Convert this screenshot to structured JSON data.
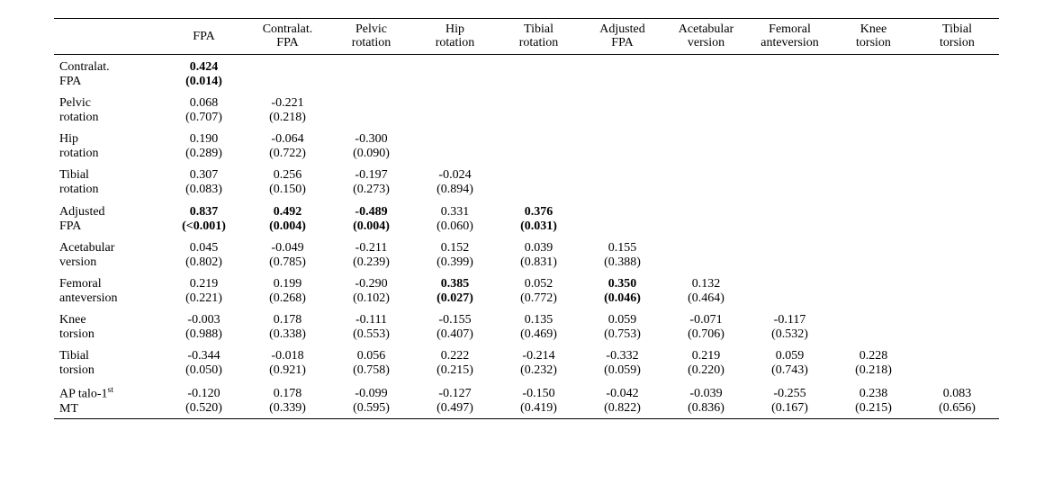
{
  "columns": [
    "FPA",
    "Contralat.\nFPA",
    "Pelvic\nrotation",
    "Hip\nrotation",
    "Tibial\nrotation",
    "Adjusted\nFPA",
    "Acetabular\nversion",
    "Femoral\nanteversion",
    "Knee\ntorsion",
    "Tibial\ntorsion"
  ],
  "rows": [
    {
      "label": "Contralat.\nFPA",
      "cells": [
        {
          "r": "0.424",
          "p": "(0.014)",
          "bold": true
        }
      ]
    },
    {
      "label": "Pelvic\nrotation",
      "cells": [
        {
          "r": "0.068",
          "p": "(0.707)"
        },
        {
          "r": "-0.221",
          "p": "(0.218)"
        }
      ]
    },
    {
      "label": "Hip\nrotation",
      "cells": [
        {
          "r": "0.190",
          "p": "(0.289)"
        },
        {
          "r": "-0.064",
          "p": "(0.722)"
        },
        {
          "r": "-0.300",
          "p": "(0.090)"
        }
      ]
    },
    {
      "label": "Tibial\nrotation",
      "cells": [
        {
          "r": "0.307",
          "p": "(0.083)"
        },
        {
          "r": "0.256",
          "p": "(0.150)"
        },
        {
          "r": "-0.197",
          "p": "(0.273)"
        },
        {
          "r": "-0.024",
          "p": "(0.894)"
        }
      ]
    },
    {
      "label": "Adjusted\nFPA",
      "cells": [
        {
          "r": "0.837",
          "p": "(<0.001)",
          "bold": true
        },
        {
          "r": "0.492",
          "p": "(0.004)",
          "bold": true
        },
        {
          "r": "-0.489",
          "p": "(0.004)",
          "bold": true
        },
        {
          "r": "0.331",
          "p": "(0.060)"
        },
        {
          "r": "0.376",
          "p": "(0.031)",
          "bold": true
        }
      ]
    },
    {
      "label": "Acetabular\nversion",
      "cells": [
        {
          "r": "0.045",
          "p": "(0.802)"
        },
        {
          "r": "-0.049",
          "p": "(0.785)"
        },
        {
          "r": "-0.211",
          "p": "(0.239)"
        },
        {
          "r": "0.152",
          "p": "(0.399)"
        },
        {
          "r": "0.039",
          "p": "(0.831)"
        },
        {
          "r": "0.155",
          "p": "(0.388)"
        }
      ]
    },
    {
      "label": "Femoral\nanteversion",
      "cells": [
        {
          "r": "0.219",
          "p": "(0.221)"
        },
        {
          "r": "0.199",
          "p": "(0.268)"
        },
        {
          "r": "-0.290",
          "p": "(0.102)"
        },
        {
          "r": "0.385",
          "p": "(0.027)",
          "bold": true
        },
        {
          "r": "0.052",
          "p": "(0.772)"
        },
        {
          "r": "0.350",
          "p": "(0.046)",
          "bold": true
        },
        {
          "r": "0.132",
          "p": "(0.464)"
        }
      ]
    },
    {
      "label": "Knee\ntorsion",
      "cells": [
        {
          "r": "-0.003",
          "p": "(0.988)"
        },
        {
          "r": "0.178",
          "p": "(0.338)"
        },
        {
          "r": "-0.111",
          "p": "(0.553)"
        },
        {
          "r": "-0.155",
          "p": "(0.407)"
        },
        {
          "r": "0.135",
          "p": "(0.469)"
        },
        {
          "r": "0.059",
          "p": "(0.753)"
        },
        {
          "r": "-0.071",
          "p": "(0.706)"
        },
        {
          "r": "-0.117",
          "p": "(0.532)"
        }
      ]
    },
    {
      "label": "Tibial\ntorsion",
      "cells": [
        {
          "r": "-0.344",
          "p": "(0.050)"
        },
        {
          "r": "-0.018",
          "p": "(0.921)"
        },
        {
          "r": "0.056",
          "p": "(0.758)"
        },
        {
          "r": "0.222",
          "p": "(0.215)"
        },
        {
          "r": "-0.214",
          "p": "(0.232)"
        },
        {
          "r": "-0.332",
          "p": "(0.059)"
        },
        {
          "r": "0.219",
          "p": "(0.220)"
        },
        {
          "r": "0.059",
          "p": "(0.743)"
        },
        {
          "r": "0.228",
          "p": "(0.218)"
        }
      ]
    },
    {
      "label": "AP talo-1st\nMT",
      "label_html": "AP talo-1<sup>st</sup><br>MT",
      "cells": [
        {
          "r": "-0.120",
          "p": "(0.520)"
        },
        {
          "r": "0.178",
          "p": "(0.339)"
        },
        {
          "r": "-0.099",
          "p": "(0.595)"
        },
        {
          "r": "-0.127",
          "p": "(0.497)"
        },
        {
          "r": "-0.150",
          "p": "(0.419)"
        },
        {
          "r": "-0.042",
          "p": "(0.822)"
        },
        {
          "r": "-0.039",
          "p": "(0.836)"
        },
        {
          "r": "-0.255",
          "p": "(0.167)"
        },
        {
          "r": "0.238",
          "p": "(0.215)"
        },
        {
          "r": "0.083",
          "p": "(0.656)"
        }
      ]
    }
  ]
}
